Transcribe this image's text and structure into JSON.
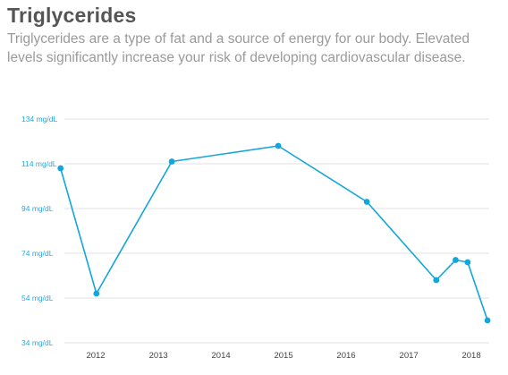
{
  "header": {
    "title": "Triglycerides",
    "description": "Triglycerides are a type of fat and a source of energy for our body. Elevated levels significantly increase your risk of developing cardiovascular disease."
  },
  "colors": {
    "series": "#11a6dc",
    "y_tick_text": "#29a9dc",
    "grid": "#e2e2e2",
    "x_tick_text": "#444444"
  },
  "chart_data": {
    "type": "line",
    "title": "",
    "xlabel": "",
    "ylabel": "",
    "ylim": [
      34,
      134
    ],
    "xlim": [
      "2011-06-01",
      "2018-04-15"
    ],
    "grid": true,
    "y_ticks": [
      {
        "value": 34,
        "label": "34 mg/dL"
      },
      {
        "value": 54,
        "label": "54 mg/dL"
      },
      {
        "value": 74,
        "label": "74 mg/dL"
      },
      {
        "value": 94,
        "label": "94 mg/dL"
      },
      {
        "value": 114,
        "label": "114 mg/dL"
      },
      {
        "value": 134,
        "label": "134 mg/dL"
      }
    ],
    "x_ticks": [
      {
        "date": "2012-01-01",
        "label": "2012"
      },
      {
        "date": "2013-01-01",
        "label": "2013"
      },
      {
        "date": "2014-01-01",
        "label": "2014"
      },
      {
        "date": "2015-01-01",
        "label": "2015"
      },
      {
        "date": "2016-01-01",
        "label": "2016"
      },
      {
        "date": "2017-01-01",
        "label": "2017"
      },
      {
        "date": "2018-01-01",
        "label": "2018"
      }
    ],
    "series": [
      {
        "points": [
          {
            "x": "2011-06-10",
            "y": 112
          },
          {
            "x": "2012-01-05",
            "y": 56
          },
          {
            "x": "2013-03-20",
            "y": 115
          },
          {
            "x": "2014-12-01",
            "y": 122
          },
          {
            "x": "2016-05-01",
            "y": 97
          },
          {
            "x": "2017-06-10",
            "y": 62
          },
          {
            "x": "2017-10-01",
            "y": 71
          },
          {
            "x": "2017-12-10",
            "y": 70
          },
          {
            "x": "2018-04-05",
            "y": 44
          }
        ]
      }
    ]
  }
}
